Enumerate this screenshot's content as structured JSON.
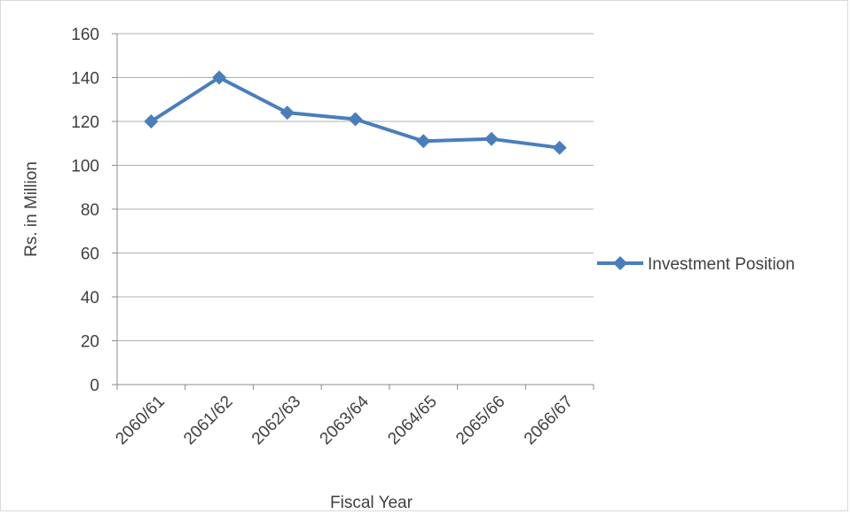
{
  "chart_data": {
    "type": "line",
    "categories": [
      "2060/61",
      "2061/62",
      "2062/63",
      "2063/64",
      "2064/65",
      "2065/66",
      "2066/67"
    ],
    "series": [
      {
        "name": "Investment Position",
        "values": [
          120,
          140,
          124,
          121,
          111,
          112,
          108
        ],
        "color": "#4a7ebb"
      }
    ],
    "title": "",
    "xlabel": "Fiscal Year",
    "ylabel": "Rs. in Million",
    "ylim": [
      0,
      160
    ],
    "yticks": [
      0,
      20,
      40,
      60,
      80,
      100,
      120,
      140,
      160
    ],
    "grid": true,
    "legend": "right"
  }
}
